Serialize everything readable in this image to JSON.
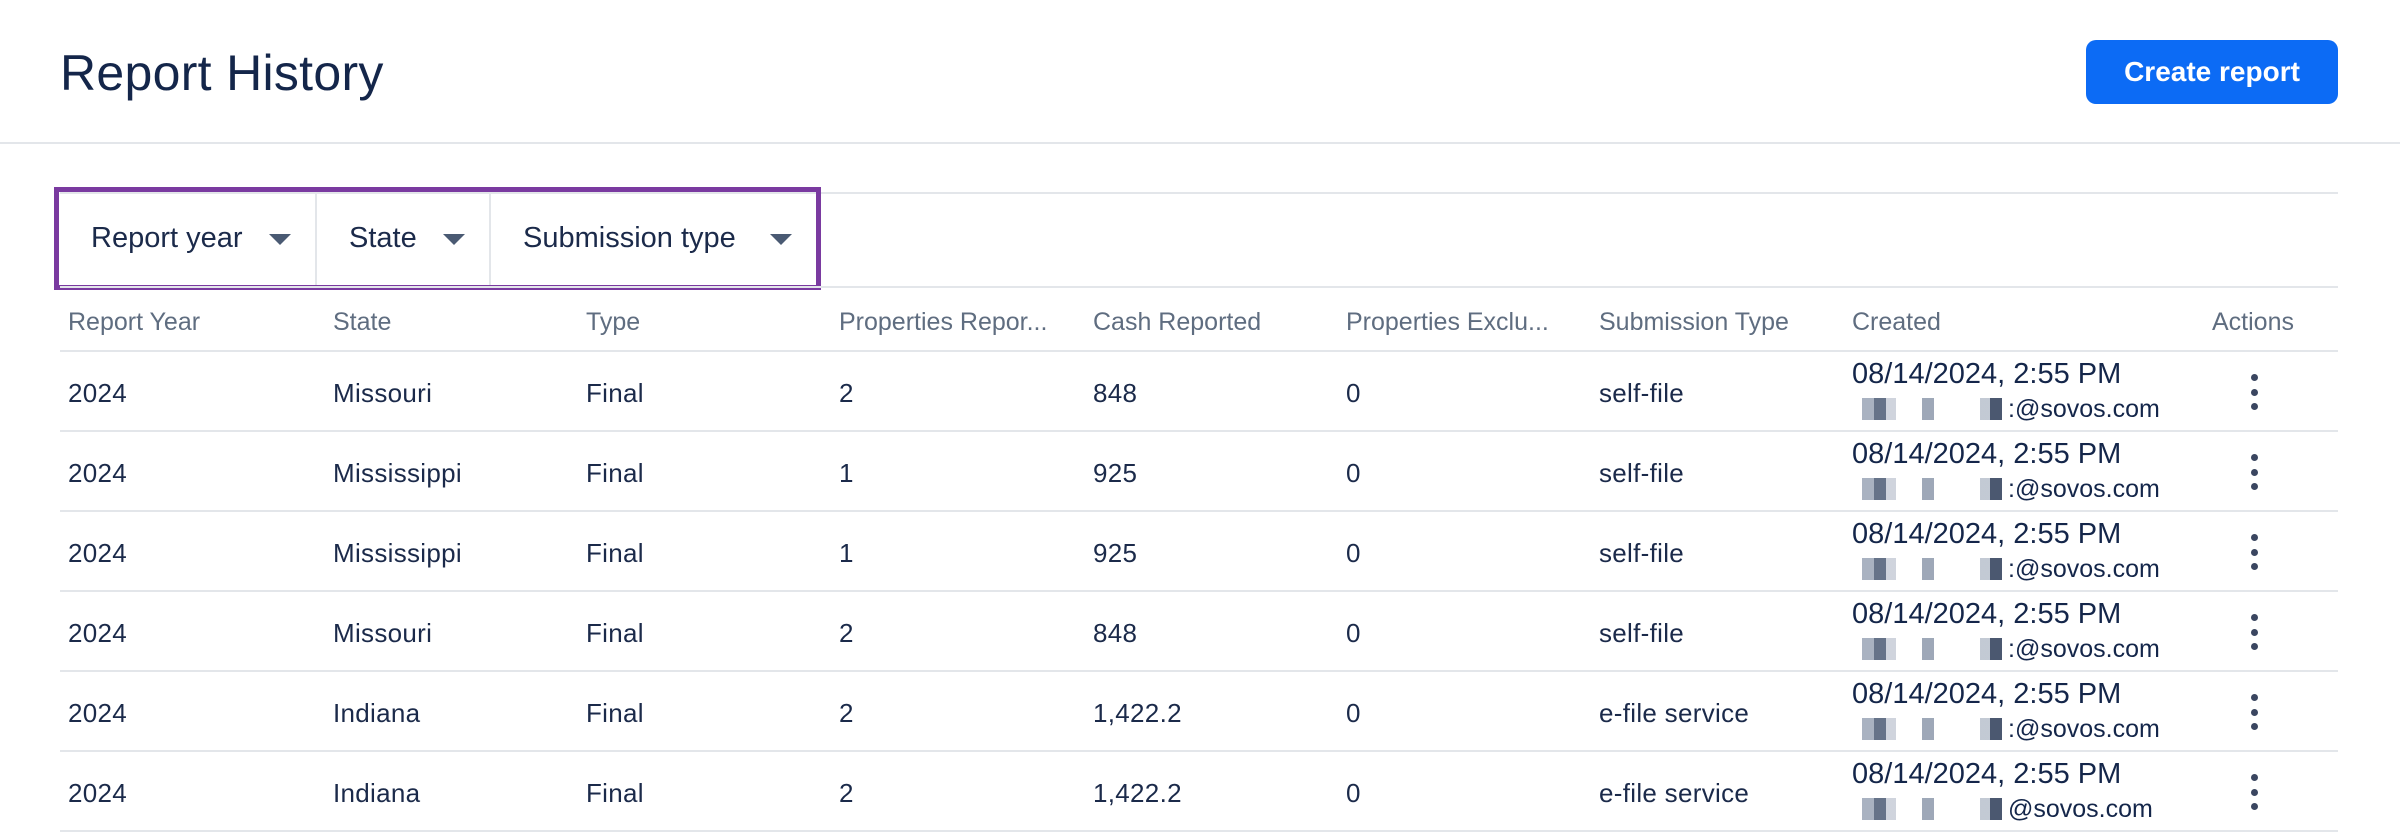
{
  "header": {
    "title": "Report History",
    "create_button": "Create report"
  },
  "filters": [
    {
      "label": "Report year"
    },
    {
      "label": "State"
    },
    {
      "label": "Submission type"
    }
  ],
  "table": {
    "columns": [
      "Report Year",
      "State",
      "Type",
      "Properties Repor...",
      "Cash Reported",
      "Properties Exclu...",
      "Submission Type",
      "Created",
      "Actions"
    ],
    "rows": [
      {
        "year": "2024",
        "state": "Missouri",
        "type": "Final",
        "properties_reported": "2",
        "cash_reported": "848",
        "properties_excluded": "0",
        "submission_type": "self-file",
        "created_date": "08/14/2024, 2:55 PM",
        "created_email": ":@sovos.com"
      },
      {
        "year": "2024",
        "state": "Mississippi",
        "type": "Final",
        "properties_reported": "1",
        "cash_reported": "925",
        "properties_excluded": "0",
        "submission_type": "self-file",
        "created_date": "08/14/2024, 2:55 PM",
        "created_email": ":@sovos.com"
      },
      {
        "year": "2024",
        "state": "Mississippi",
        "type": "Final",
        "properties_reported": "1",
        "cash_reported": "925",
        "properties_excluded": "0",
        "submission_type": "self-file",
        "created_date": "08/14/2024, 2:55 PM",
        "created_email": ":@sovos.com"
      },
      {
        "year": "2024",
        "state": "Missouri",
        "type": "Final",
        "properties_reported": "2",
        "cash_reported": "848",
        "properties_excluded": "0",
        "submission_type": "self-file",
        "created_date": "08/14/2024, 2:55 PM",
        "created_email": ":@sovos.com"
      },
      {
        "year": "2024",
        "state": "Indiana",
        "type": "Final",
        "properties_reported": "2",
        "cash_reported": "1,422.2",
        "properties_excluded": "0",
        "submission_type": "e-file service",
        "created_date": "08/14/2024, 2:55 PM",
        "created_email": ":@sovos.com"
      },
      {
        "year": "2024",
        "state": "Indiana",
        "type": "Final",
        "properties_reported": "2",
        "cash_reported": "1,422.2",
        "properties_excluded": "0",
        "submission_type": "e-file service",
        "created_date": "08/14/2024, 2:55 PM",
        "created_email": "@sovos.com"
      }
    ]
  },
  "colors": {
    "primary": "#0c6bf5",
    "highlight_border": "#7a3aa0",
    "text": "#14264a",
    "muted": "#5f6d80",
    "divider": "#e3e6ea"
  }
}
